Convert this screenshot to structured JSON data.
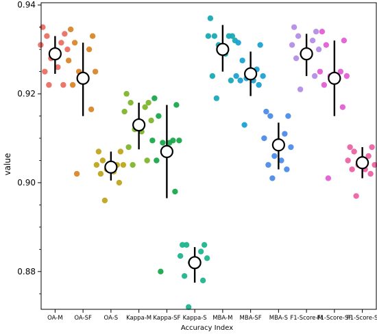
{
  "chart_data": {
    "type": "scatter",
    "title": "",
    "xlabel": "Accuracy Index",
    "ylabel": "value",
    "ylim": [
      0.8715,
      0.9405
    ],
    "yticks": [
      "0.94",
      "0.92",
      "0.90",
      "0.88"
    ],
    "ytick_values": [
      0.94,
      0.92,
      0.9,
      0.88
    ],
    "grid": false,
    "legend": "none",
    "categories": [
      "OA-M",
      "OA-SF",
      "OA-S",
      "Kappa-M",
      "Kappa-SF",
      "Kappa-S",
      "MBA-M",
      "MBA-SF",
      "MBA-S",
      "F1-Score-M",
      "F1-Score-SF",
      "F1-Score-S"
    ],
    "colors": [
      "#ea6f64",
      "#d9862a",
      "#bfa51f",
      "#7fb52c",
      "#1aa84c",
      "#1fb58e",
      "#19aab4",
      "#1ca2d3",
      "#4d8ce8",
      "#b48ee8",
      "#e45fd4",
      "#ec63a4"
    ],
    "groups": [
      {
        "points": [
          0.935,
          0.9335,
          0.933,
          0.9315,
          0.931,
          0.93,
          0.928,
          0.926,
          0.925,
          0.922,
          0.922
        ],
        "mean": 0.929,
        "err": [
          0.9245,
          0.933
        ]
      },
      {
        "points": [
          0.9345,
          0.933,
          0.9315,
          0.93,
          0.9275,
          0.925,
          0.925,
          0.9235,
          0.922,
          0.9165,
          0.902
        ],
        "mean": 0.9235,
        "err": [
          0.915,
          0.9315
        ]
      },
      {
        "points": [
          0.907,
          0.907,
          0.905,
          0.904,
          0.904,
          0.904,
          0.903,
          0.9025,
          0.902,
          0.9,
          0.896
        ],
        "mean": 0.9035,
        "err": [
          0.9005,
          0.907
        ]
      },
      {
        "points": [
          0.92,
          0.918,
          0.918,
          0.917,
          0.916,
          0.914,
          0.912,
          0.9115,
          0.908,
          0.905,
          0.904
        ],
        "mean": 0.913,
        "err": [
          0.9075,
          0.918
        ]
      },
      {
        "points": [
          0.919,
          0.9175,
          0.915,
          0.9095,
          0.9095,
          0.9095,
          0.909,
          0.909,
          0.905,
          0.898,
          0.88
        ],
        "mean": 0.907,
        "err": [
          0.8965,
          0.9175
        ]
      },
      {
        "points": [
          0.886,
          0.886,
          0.886,
          0.8845,
          0.8835,
          0.883,
          0.882,
          0.8815,
          0.879,
          0.878,
          0.872
        ],
        "mean": 0.882,
        "err": [
          0.8775,
          0.8855
        ]
      },
      {
        "points": [
          0.937,
          0.933,
          0.933,
          0.933,
          0.933,
          0.932,
          0.931,
          0.929,
          0.924,
          0.923,
          0.919
        ],
        "mean": 0.93,
        "err": [
          0.925,
          0.9355
        ]
      },
      {
        "points": [
          0.9315,
          0.931,
          0.9275,
          0.9255,
          0.924,
          0.924,
          0.9235,
          0.923,
          0.923,
          0.922,
          0.913
        ],
        "mean": 0.9245,
        "err": [
          0.9195,
          0.9295
        ]
      },
      {
        "points": [
          0.916,
          0.915,
          0.915,
          0.911,
          0.91,
          0.908,
          0.906,
          0.905,
          0.904,
          0.903,
          0.901
        ],
        "mean": 0.9085,
        "err": [
          0.903,
          0.9135
        ]
      },
      {
        "points": [
          0.935,
          0.934,
          0.933,
          0.932,
          0.931,
          0.93,
          0.929,
          0.9285,
          0.928,
          0.924,
          0.921
        ],
        "mean": 0.929,
        "err": [
          0.924,
          0.9335
        ]
      },
      {
        "points": [
          0.934,
          0.932,
          0.931,
          0.925,
          0.925,
          0.924,
          0.924,
          0.923,
          0.922,
          0.917,
          0.901
        ],
        "mean": 0.9235,
        "err": [
          0.915,
          0.932
        ]
      },
      {
        "points": [
          0.908,
          0.908,
          0.907,
          0.906,
          0.905,
          0.904,
          0.904,
          0.903,
          0.903,
          0.902,
          0.897
        ],
        "mean": 0.9045,
        "err": [
          0.901,
          0.908
        ]
      }
    ]
  }
}
